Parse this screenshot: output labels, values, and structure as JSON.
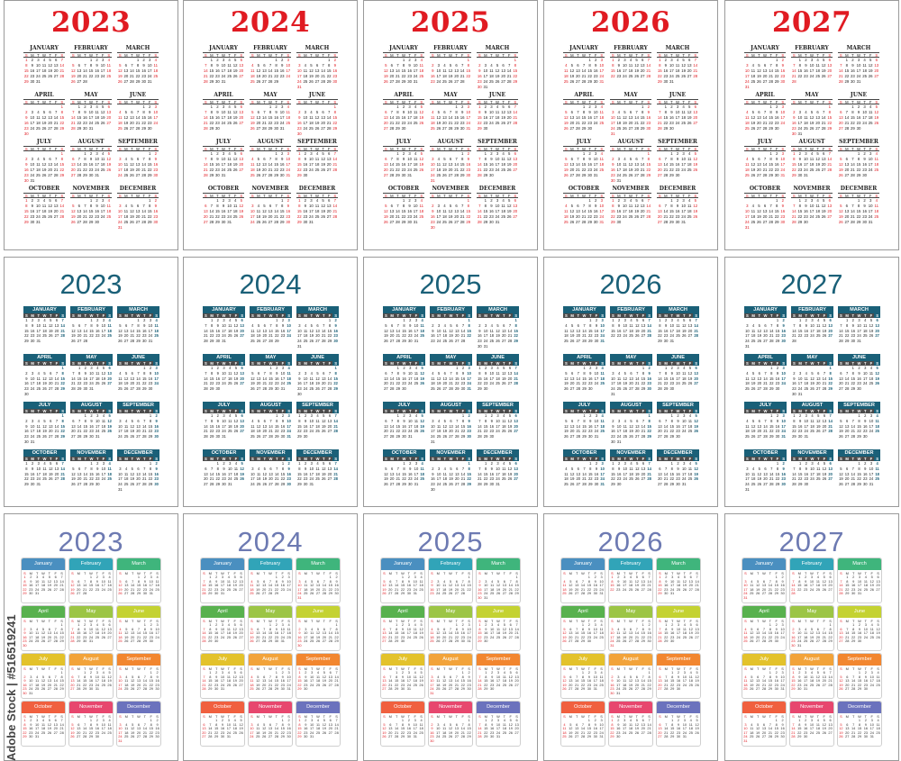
{
  "years": [
    "2023",
    "2024",
    "2025",
    "2026",
    "2027"
  ],
  "styles": [
    {
      "id": "classic-red",
      "year_color": "#e01b22",
      "weekday_headers": [
        "S",
        "M",
        "T",
        "W",
        "T",
        "F",
        "S"
      ]
    },
    {
      "id": "teal-bars",
      "year_color": "#1a6078",
      "weekday_headers": [
        "S",
        "M",
        "T",
        "W",
        "T",
        "F",
        "S"
      ]
    },
    {
      "id": "rainbow",
      "year_color": "#6d7ab2",
      "weekday_headers": [
        "S",
        "M",
        "T",
        "W",
        "T",
        "F",
        "S"
      ]
    }
  ],
  "month_names": {
    "uppercase": [
      "JANUARY",
      "FEBRUARY",
      "MARCH",
      "APRIL",
      "MAY",
      "JUNE",
      "JULY",
      "AUGUST",
      "SEPTEMBER",
      "OCTOBER",
      "NOVEMBER",
      "DECEMBER"
    ],
    "titlecase": [
      "January",
      "February",
      "March",
      "April",
      "May",
      "June",
      "July",
      "August",
      "September",
      "October",
      "November",
      "December"
    ]
  },
  "month_colors": [
    "#4a8fc0",
    "#31a4b8",
    "#3fb57c",
    "#58b14e",
    "#9cc545",
    "#c4d232",
    "#e3c22b",
    "#f2a33a",
    "#f2862f",
    "#f0603f",
    "#e7476e",
    "#6b72bd"
  ],
  "watermark": "Adobe Stock | #516519241"
}
